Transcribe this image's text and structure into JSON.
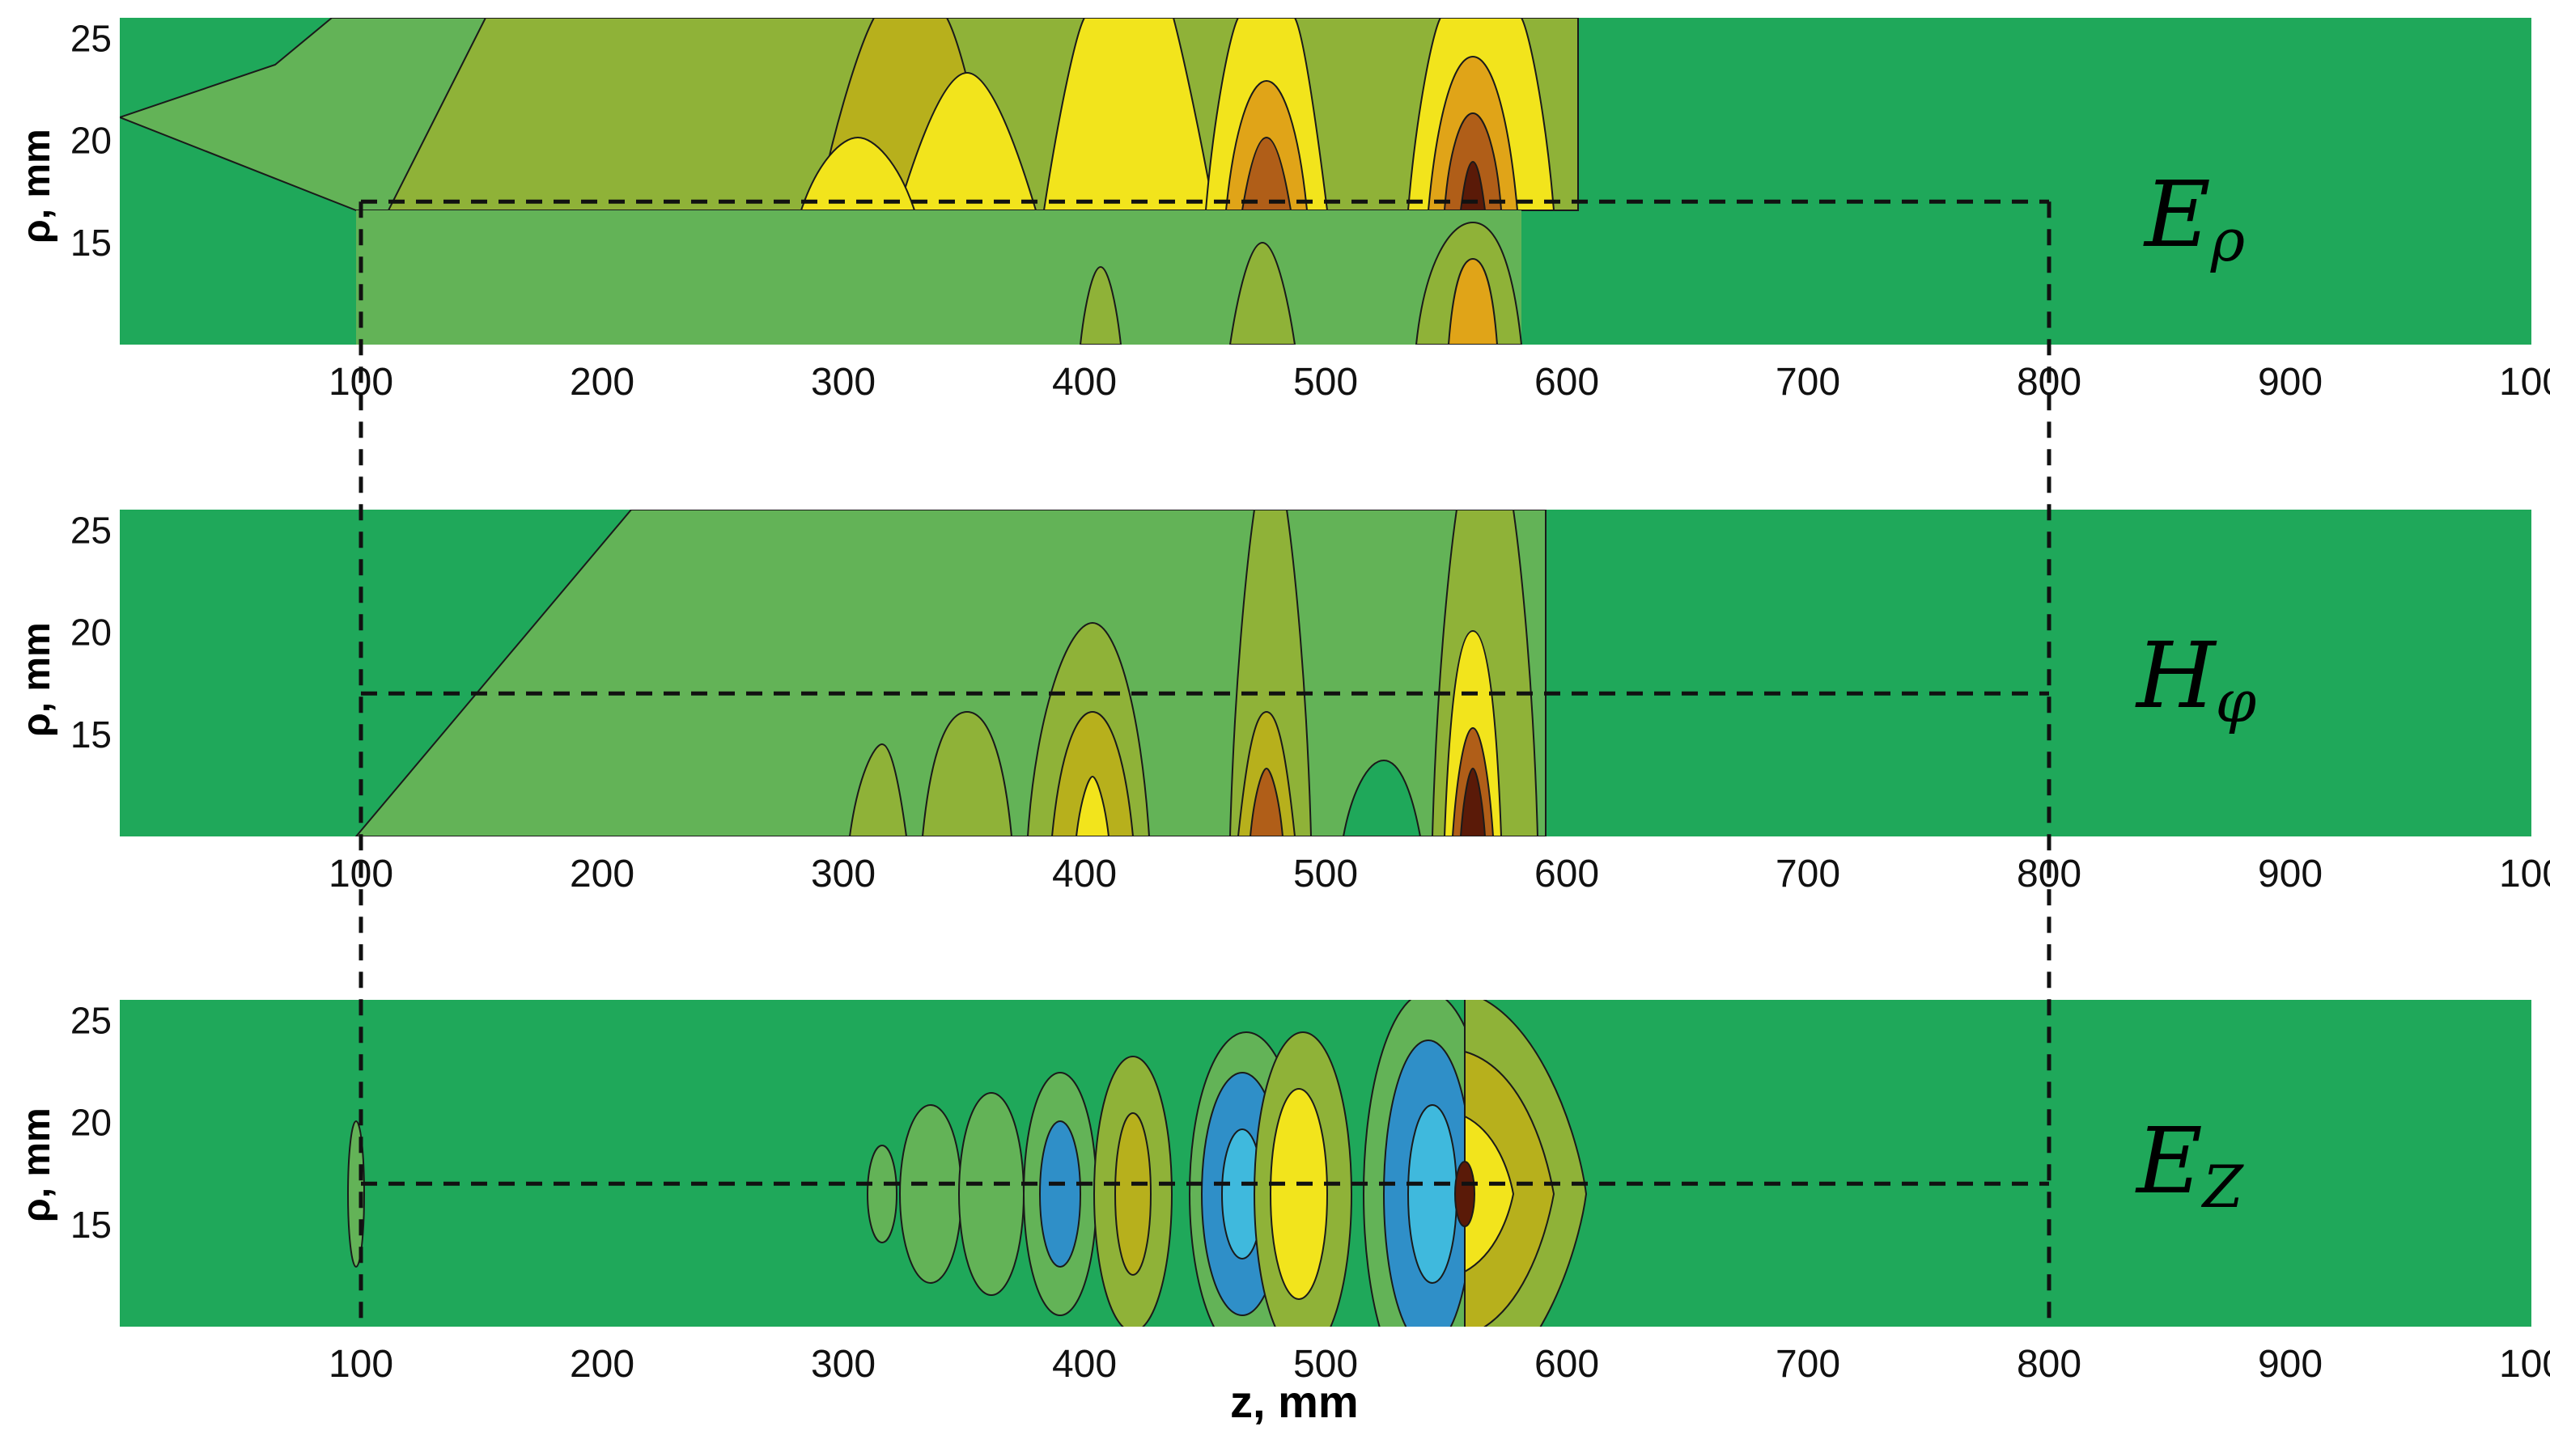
{
  "chart_data": [
    {
      "type": "heatmap",
      "field_symbol": "E",
      "field_subscript": "ρ",
      "ylabel": "ρ, mm",
      "xlabel": "",
      "xticks": [
        "100",
        "200",
        "300",
        "400",
        "500",
        "600",
        "700",
        "800",
        "900",
        "100"
      ],
      "yticks": [
        "15",
        "20",
        "25"
      ],
      "xlim": [
        0,
        1000
      ],
      "ylim": [
        10,
        26
      ],
      "colormap": [
        "#2f8fc8",
        "#3fb9dd",
        "#1fa85a",
        "#63b357",
        "#8fb238",
        "#b7b01c",
        "#f2e41c",
        "#e0a418",
        "#b05e18",
        "#5a1a08"
      ],
      "background_level": 2,
      "dashed_box": {
        "z": [
          100,
          800
        ],
        "rho": [
          17,
          26
        ]
      },
      "lobes": [
        {
          "z": 480,
          "rho_peak": 17,
          "level": 9
        },
        {
          "z": 565,
          "rho_peak": 17,
          "level": 9
        },
        {
          "z": 410,
          "rho_peak": 17,
          "level": 6
        },
        {
          "z": 350,
          "rho_peak": 17,
          "level": 6
        },
        {
          "z": 300,
          "rho_peak": 17,
          "level": 6
        }
      ]
    },
    {
      "type": "heatmap",
      "field_symbol": "H",
      "field_subscript": "φ",
      "ylabel": "ρ, mm",
      "xlabel": "",
      "xticks": [
        "100",
        "200",
        "300",
        "400",
        "500",
        "600",
        "700",
        "800",
        "900",
        "100"
      ],
      "yticks": [
        "15",
        "20",
        "25"
      ],
      "xlim": [
        0,
        1000
      ],
      "ylim": [
        10,
        26
      ],
      "colormap": [
        "#2f8fc8",
        "#3fb9dd",
        "#1fa85a",
        "#63b357",
        "#8fb238",
        "#b7b01c",
        "#f2e41c",
        "#e0a418",
        "#b05e18",
        "#5a1a08"
      ],
      "background_level": 2,
      "dashed_line": {
        "z": [
          100,
          800
        ],
        "rho": 17
      },
      "lobes": [
        {
          "z": 565,
          "rho_peak": 10,
          "level": 9
        },
        {
          "z": 480,
          "rho_peak": 10,
          "level": 8
        },
        {
          "z": 410,
          "rho_peak": 10,
          "level": 6
        },
        {
          "z": 350,
          "rho_peak": 10,
          "level": 5
        }
      ]
    },
    {
      "type": "heatmap",
      "field_symbol": "E",
      "field_subscript": "Z",
      "ylabel": "ρ, mm",
      "xlabel": "z, mm",
      "xticks": [
        "100",
        "200",
        "300",
        "400",
        "500",
        "600",
        "700",
        "800",
        "900",
        "100"
      ],
      "yticks": [
        "15",
        "20",
        "25"
      ],
      "xlim": [
        0,
        1000
      ],
      "ylim": [
        10,
        26
      ],
      "colormap": [
        "#2f8fc8",
        "#3fb9dd",
        "#1fa85a",
        "#63b357",
        "#8fb238",
        "#b7b01c",
        "#f2e41c",
        "#e0a418",
        "#b05e18",
        "#5a1a08"
      ],
      "background_level": 2,
      "dashed_line": {
        "z": [
          100,
          800
        ],
        "rho": 17
      },
      "lobes": [
        {
          "z": 550,
          "rho_peak": 17,
          "level": 0
        },
        {
          "z": 580,
          "rho_peak": 17,
          "level": 9
        },
        {
          "z": 468,
          "rho_peak": 17,
          "level": 0
        },
        {
          "z": 490,
          "rho_peak": 17,
          "level": 7
        },
        {
          "z": 400,
          "rho_peak": 17,
          "level": 0
        },
        {
          "z": 425,
          "rho_peak": 17,
          "level": 5
        }
      ]
    }
  ]
}
